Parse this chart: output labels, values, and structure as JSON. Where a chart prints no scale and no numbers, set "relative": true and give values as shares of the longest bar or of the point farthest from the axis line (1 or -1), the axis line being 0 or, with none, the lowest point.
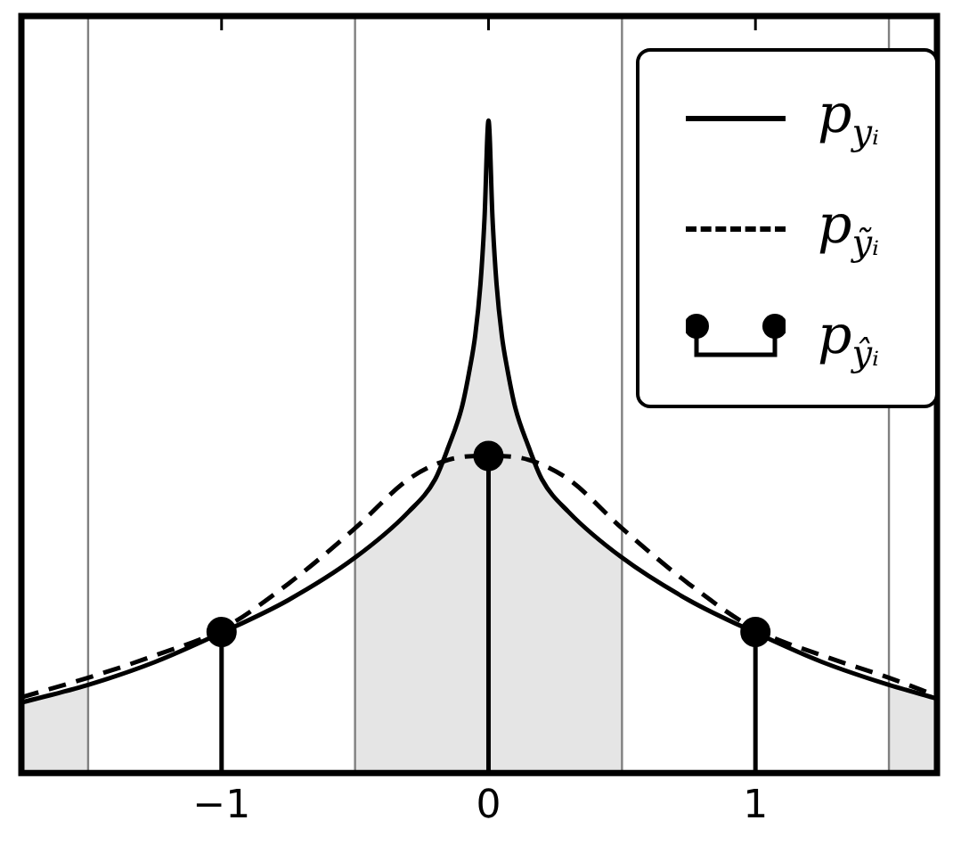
{
  "chart_data": {
    "type": "line",
    "relative": true,
    "xlim": [
      -1.75,
      1.68
    ],
    "xticks": [
      {
        "value": -1,
        "label": "−1"
      },
      0,
      1
    ],
    "legend": "top right",
    "series": [
      {
        "name": "p$_{yᵢ}$",
        "color": "#000000",
        "line_style": "solid",
        "marker": "none",
        "x": [
          -1.75,
          -1.5,
          -1.25,
          -1,
          -0.75,
          -0.5,
          -0.3,
          -0.2,
          -0.15,
          -0.1,
          -0.07,
          -0.05,
          -0.03,
          -0.015,
          0,
          0.015,
          0.03,
          0.05,
          0.07,
          0.1,
          0.15,
          0.2,
          0.3,
          0.5,
          0.75,
          1,
          1.25,
          1.5,
          1.68
        ],
        "values": [
          0.108,
          0.135,
          0.17,
          0.215,
          0.265,
          0.33,
          0.4,
          0.45,
          0.5,
          0.56,
          0.62,
          0.67,
          0.75,
          0.85,
          1,
          0.85,
          0.75,
          0.67,
          0.62,
          0.56,
          0.5,
          0.45,
          0.4,
          0.33,
          0.265,
          0.215,
          0.17,
          0.135,
          0.114
        ]
      },
      {
        "name": "p$_{ỹᵢ}$",
        "color": "#000000",
        "line_style": "dashed",
        "marker": "none",
        "x": [
          -1.75,
          -1.5,
          -1.25,
          -1,
          -0.75,
          -0.5,
          -0.3,
          -0.15,
          0,
          0.15,
          0.3,
          0.5,
          0.75,
          1,
          1.25,
          1.5,
          1.68
        ],
        "values": [
          0.116,
          0.146,
          0.18,
          0.22,
          0.29,
          0.375,
          0.45,
          0.48,
          0.486,
          0.48,
          0.45,
          0.375,
          0.29,
          0.22,
          0.18,
          0.146,
          0.118
        ]
      },
      {
        "name": "p$_{ŷᵢ}$",
        "type": "lollipop",
        "color": "#000000",
        "marker": "circle",
        "x": [
          -1,
          0,
          1
        ],
        "values": [
          0.216,
          0.486,
          0.216
        ]
      }
    ],
    "ref_lines": [
      {
        "axis": "x",
        "value": -1.5,
        "color": "#808080"
      },
      {
        "axis": "x",
        "value": -0.5,
        "color": "#808080"
      },
      {
        "axis": "x",
        "value": 0.5,
        "color": "#808080"
      },
      {
        "axis": "x",
        "value": 1.5,
        "color": "#808080"
      }
    ],
    "bands": [
      {
        "axis": "x",
        "from": -1.75,
        "to": -1.5,
        "color": "#e5e5e5"
      },
      {
        "axis": "x",
        "from": -0.5,
        "to": 0.5,
        "color": "#e5e5e5"
      },
      {
        "axis": "x",
        "from": 1.5,
        "to": 1.68,
        "color": "#e5e5e5"
      }
    ]
  }
}
